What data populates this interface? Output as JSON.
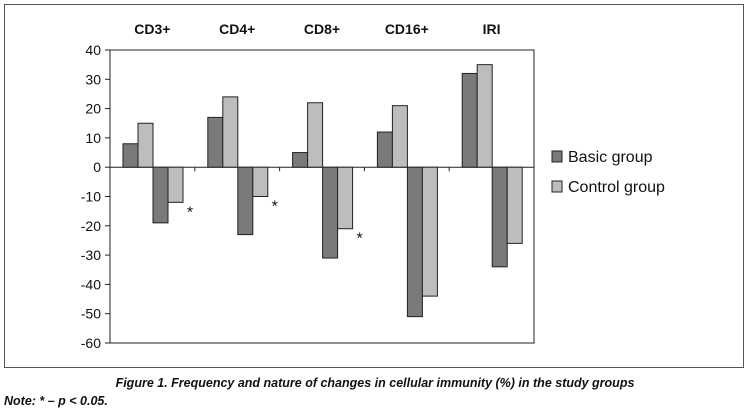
{
  "chart_data": {
    "type": "bar",
    "categories": [
      "CD3+",
      "CD4+",
      "CD8+",
      "CD16+",
      "IRI"
    ],
    "series": [
      {
        "name": "Basic group",
        "color": "#7a7a7a",
        "increase": [
          8,
          17,
          5,
          12,
          32
        ],
        "decrease": [
          -19,
          -23,
          -31,
          -51,
          -34
        ]
      },
      {
        "name": "Control group",
        "color": "#bdbdbd",
        "increase": [
          15,
          24,
          22,
          21,
          35
        ],
        "decrease": [
          -12,
          -10,
          -21,
          -44,
          -26
        ]
      }
    ],
    "annotations": [
      {
        "category": "CD3+",
        "series": "Control group",
        "sign": "decrease",
        "text": "*"
      },
      {
        "category": "CD4+",
        "series": "Control group",
        "sign": "decrease",
        "text": "*"
      },
      {
        "category": "CD8+",
        "series": "Control group",
        "sign": "decrease",
        "text": "*"
      }
    ],
    "ylim": [
      -60,
      40
    ],
    "yticks": [
      40,
      30,
      20,
      10,
      0,
      -10,
      -20,
      -30,
      -40,
      -50,
      -60
    ],
    "grid": false,
    "legend_position": "right",
    "category_labels_position": "top"
  },
  "caption": "Figure 1. Frequency and nature of changes in cellular immunity (%) in the study groups",
  "note": "Note: * – p < 0.05."
}
